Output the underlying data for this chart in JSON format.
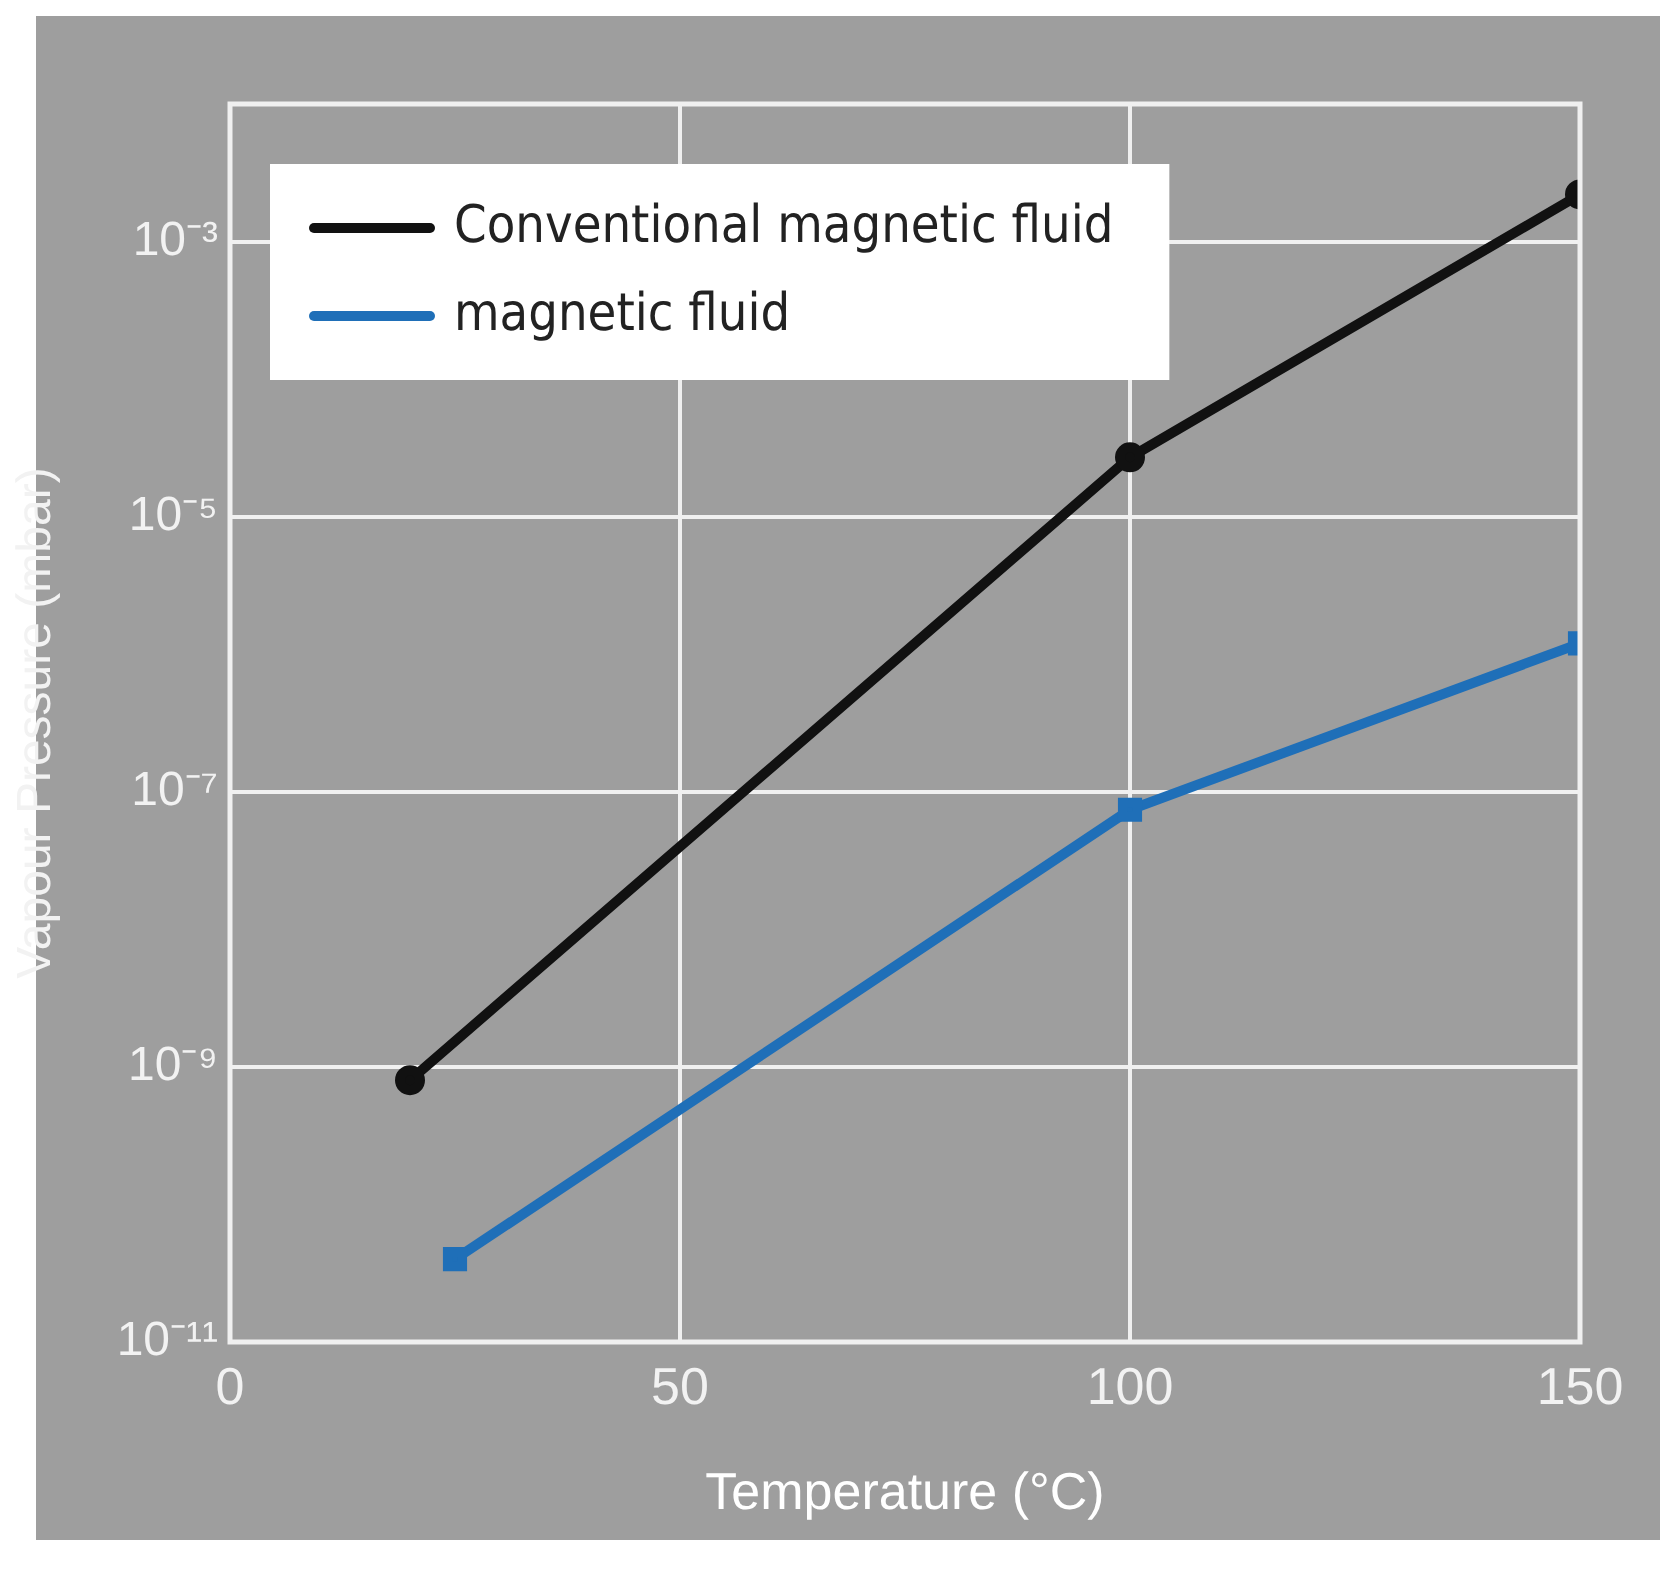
{
  "chart_data": {
    "type": "line",
    "xlabel": "Temperature (°C)",
    "ylabel": "Vapour Pressure (mbar)",
    "series": [
      {
        "name": "Conventional magnetic fluid",
        "color": "#111111",
        "marker": "circle",
        "x": [
          20,
          100,
          150
        ],
        "values": [
          8e-10,
          2.7e-05,
          0.0022
        ]
      },
      {
        "name": "magnetic fluid",
        "color": "#1f6fb8",
        "marker": "square",
        "x": [
          25,
          100,
          150
        ],
        "values": [
          4e-11,
          7.4e-08,
          1.2e-06
        ]
      }
    ],
    "xlim": [
      0,
      150
    ],
    "xticks": [
      0,
      50,
      100,
      150
    ],
    "log": "y",
    "ylim": [
      1e-11,
      0.01
    ],
    "yticks": [
      {
        "value": 1e-11,
        "label": "10⁻¹¹"
      },
      {
        "value": 1e-09,
        "label": "10⁻⁹"
      },
      {
        "value": 1e-07,
        "label": "10⁻⁷"
      },
      {
        "value": 1e-05,
        "label": "10⁻⁵"
      },
      {
        "value": 0.001,
        "label": "10⁻³"
      },
      {
        "value": 0.01,
        "label": null
      }
    ],
    "grid": true,
    "legend": "top left",
    "line_style": "solid"
  }
}
